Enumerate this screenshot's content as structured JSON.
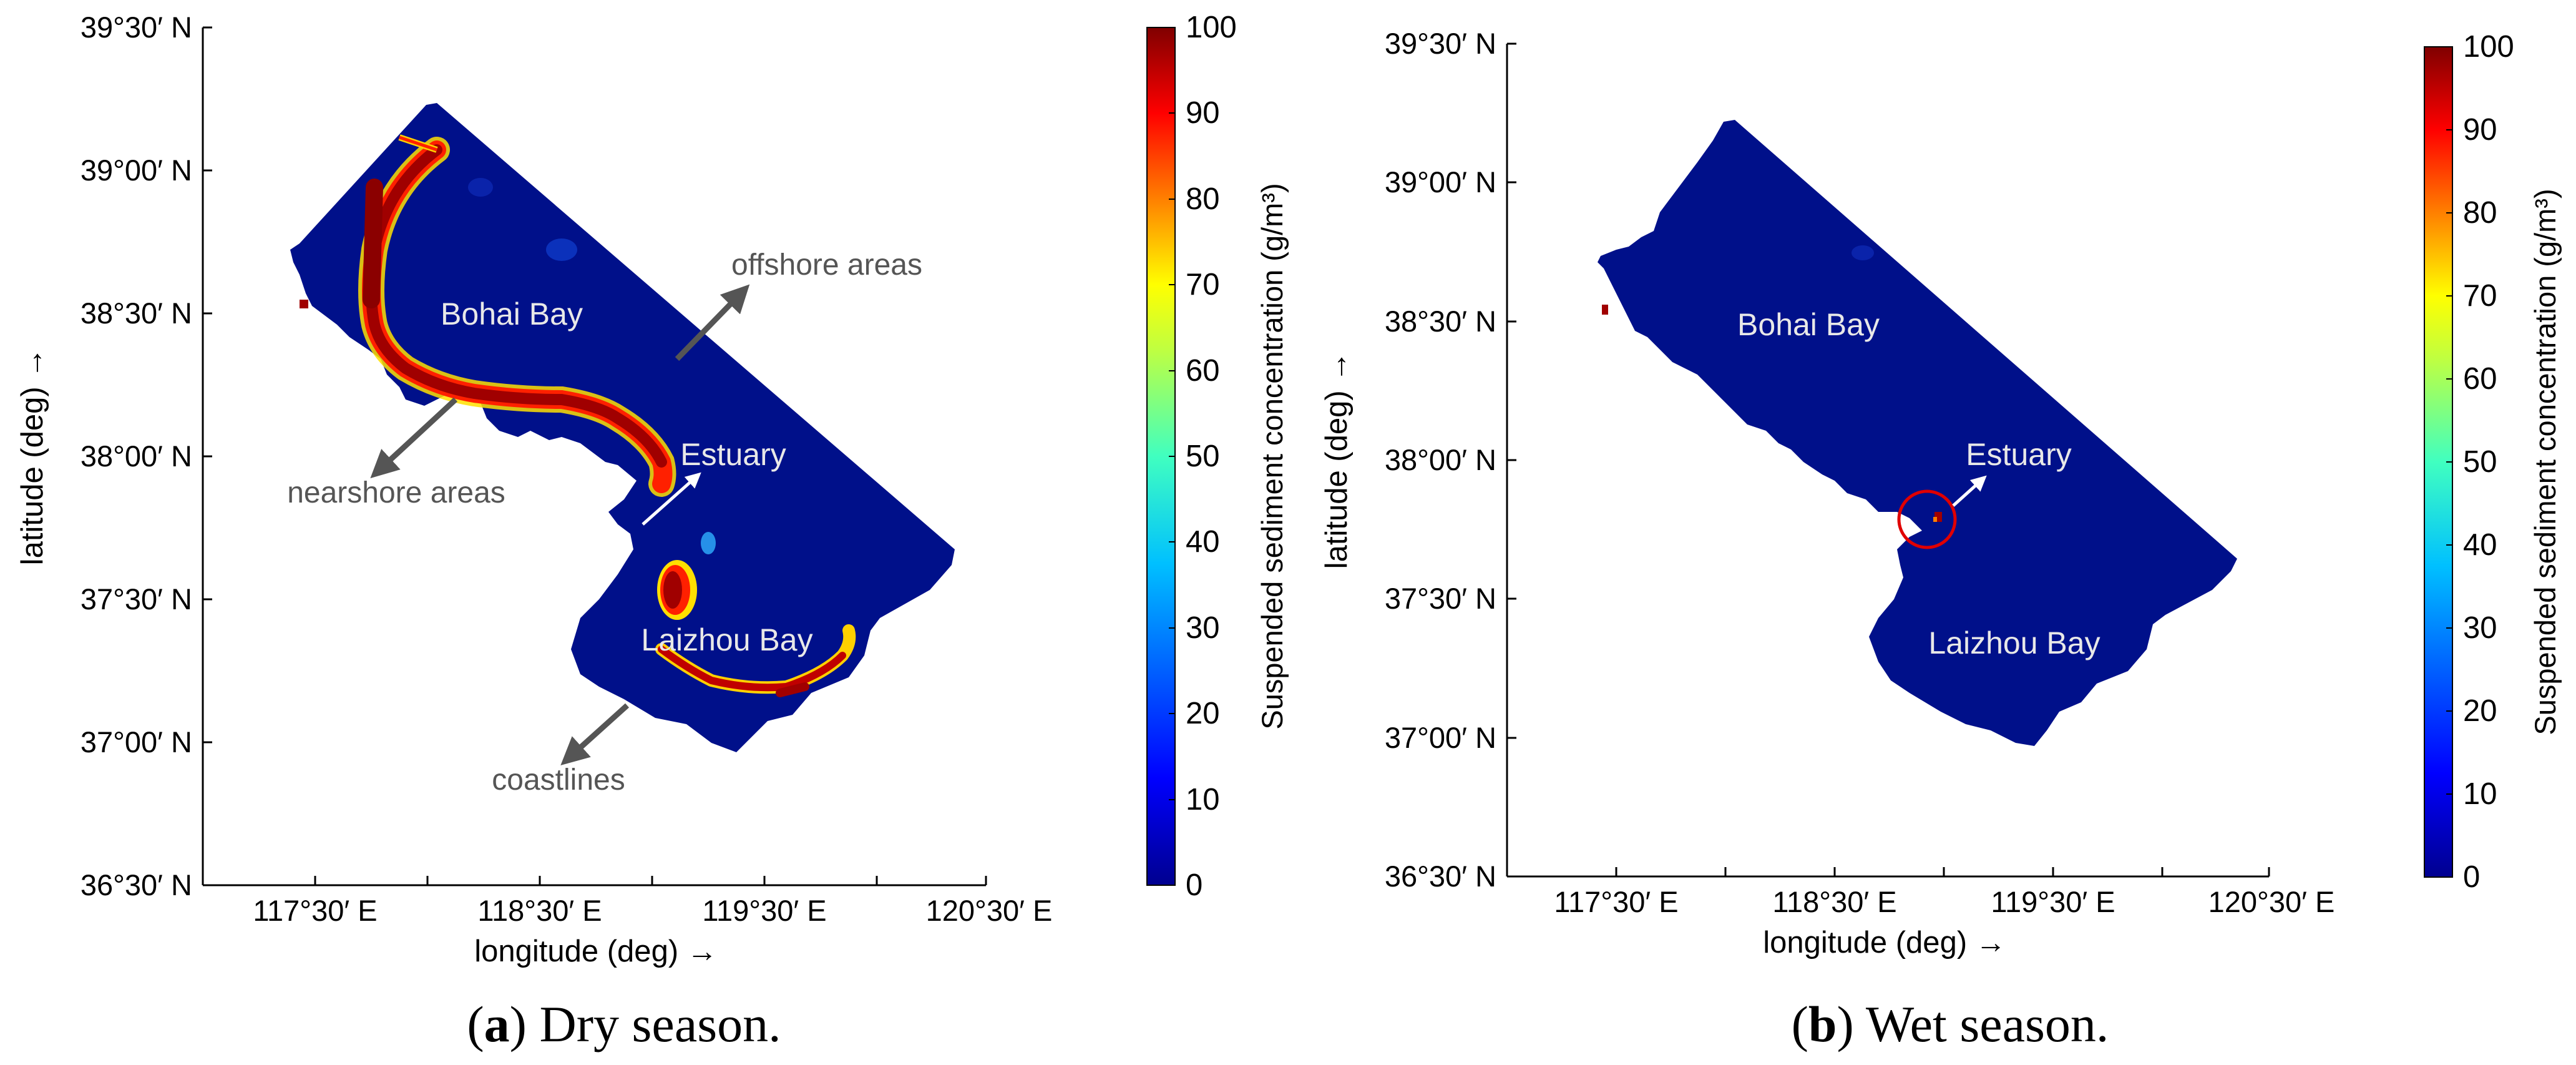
{
  "colormap_stops": [
    "#00008f",
    "#0000ff",
    "#0080ff",
    "#00ffff",
    "#80ff80",
    "#ffff00",
    "#ff8000",
    "#ff0000",
    "#800000"
  ],
  "ocean_color": "#00108a",
  "panels": [
    {
      "id": "a",
      "caption_letter": "a",
      "caption_text": "Dry season.",
      "xlabel": "longitude (deg) →",
      "ylabel": "latitude (deg) →",
      "xticks": [
        "117°30′ E",
        "118°30′ E",
        "119°30′ E",
        "120°30′ E"
      ],
      "yticks": [
        "39°30′ N",
        "39°00′ N",
        "38°30′ N",
        "38°00′ N",
        "37°30′ N",
        "37°00′ N",
        "36°30′ N"
      ],
      "colorbar_label": "Suspended sediment concentration (g/m³)",
      "colorbar_ticks": [
        "100",
        "90",
        "80",
        "70",
        "60",
        "50",
        "40",
        "30",
        "20",
        "10",
        "0"
      ],
      "map_labels": [
        "Bohai Bay",
        "Estuary",
        "Laizhou Bay"
      ],
      "annotations": [
        "offshore areas",
        "nearshore areas",
        "coastlines"
      ]
    },
    {
      "id": "b",
      "caption_letter": "b",
      "caption_text": "Wet season.",
      "xlabel": "longitude (deg) →",
      "ylabel": "latitude (deg) →",
      "xticks": [
        "117°30′ E",
        "118°30′ E",
        "119°30′ E",
        "120°30′ E"
      ],
      "yticks": [
        "39°30′ N",
        "39°00′ N",
        "38°30′ N",
        "38°00′ N",
        "37°30′ N",
        "37°00′ N",
        "36°30′ N"
      ],
      "colorbar_label": "Suspended sediment concentration (g/m³)",
      "colorbar_ticks": [
        "100",
        "90",
        "80",
        "70",
        "60",
        "50",
        "40",
        "30",
        "20",
        "10",
        "0"
      ],
      "map_labels": [
        "Bohai Bay",
        "Estuary",
        "Laizhou Bay"
      ],
      "annotations": []
    }
  ]
}
